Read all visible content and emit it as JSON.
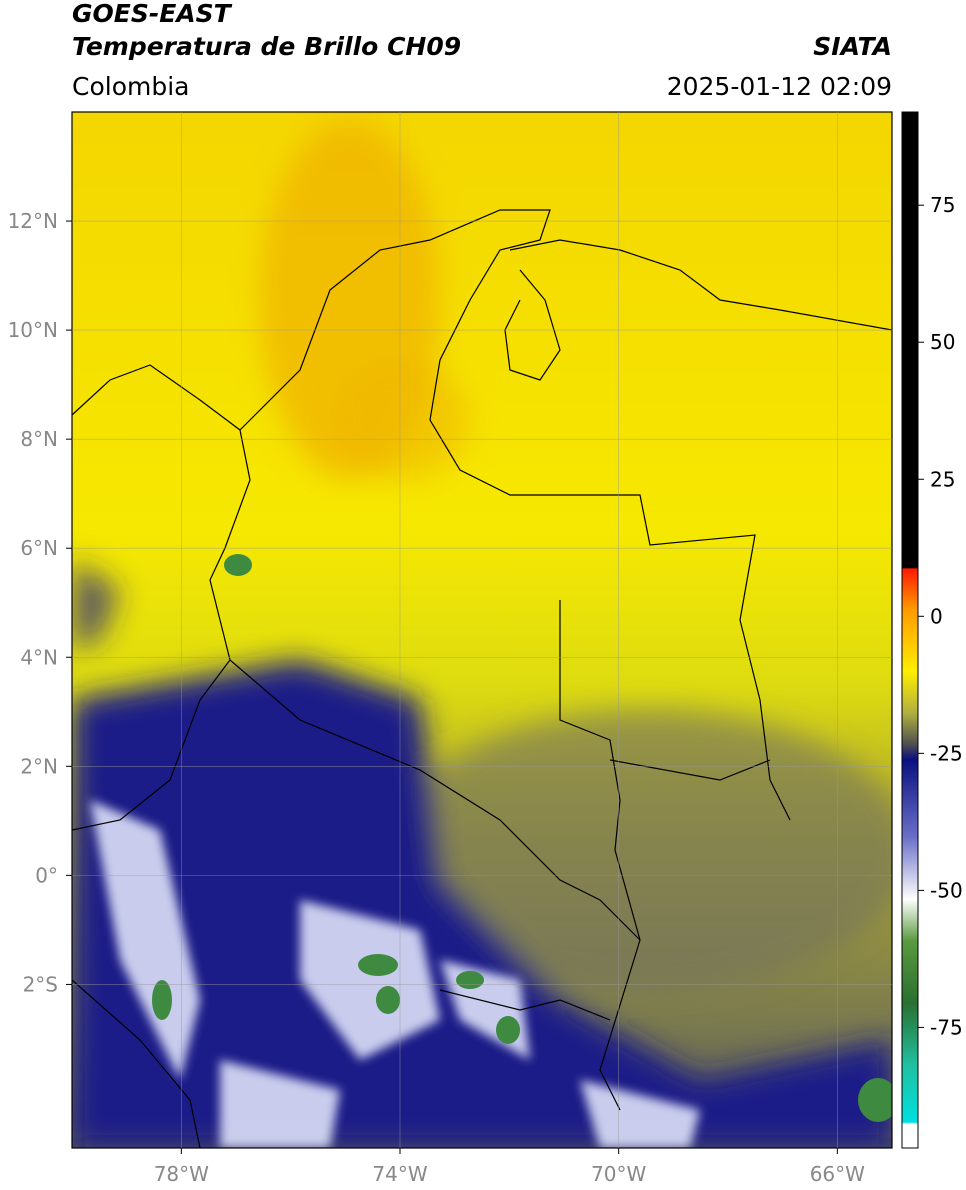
{
  "header": {
    "title": "GOES-EAST",
    "subtitle": "Temperatura de Brillo CH09",
    "source": "SIATA",
    "region": "Colombia",
    "datetime": "2025-01-12 02:09"
  },
  "map": {
    "lonlim": [
      -80,
      -65
    ],
    "latlim": [
      -5,
      14
    ],
    "lonticks": [
      {
        "value": -78,
        "label": "78°W"
      },
      {
        "value": -74,
        "label": "74°W"
      },
      {
        "value": -70,
        "label": "70°W"
      },
      {
        "value": -66,
        "label": "66°W"
      }
    ],
    "latticks": [
      {
        "value": 12,
        "label": "12°N"
      },
      {
        "value": 10,
        "label": "10°N"
      },
      {
        "value": 8,
        "label": "8°N"
      },
      {
        "value": 6,
        "label": "6°N"
      },
      {
        "value": 4,
        "label": "4°N"
      },
      {
        "value": 2,
        "label": "2°N"
      },
      {
        "value": 0,
        "label": "0°"
      },
      {
        "value": -2,
        "label": "2°S"
      }
    ],
    "grid": true
  },
  "colorbar": {
    "lim": [
      -97,
      92
    ],
    "ticks": [
      75,
      50,
      25,
      0,
      -25,
      -50,
      -75
    ]
  }
}
